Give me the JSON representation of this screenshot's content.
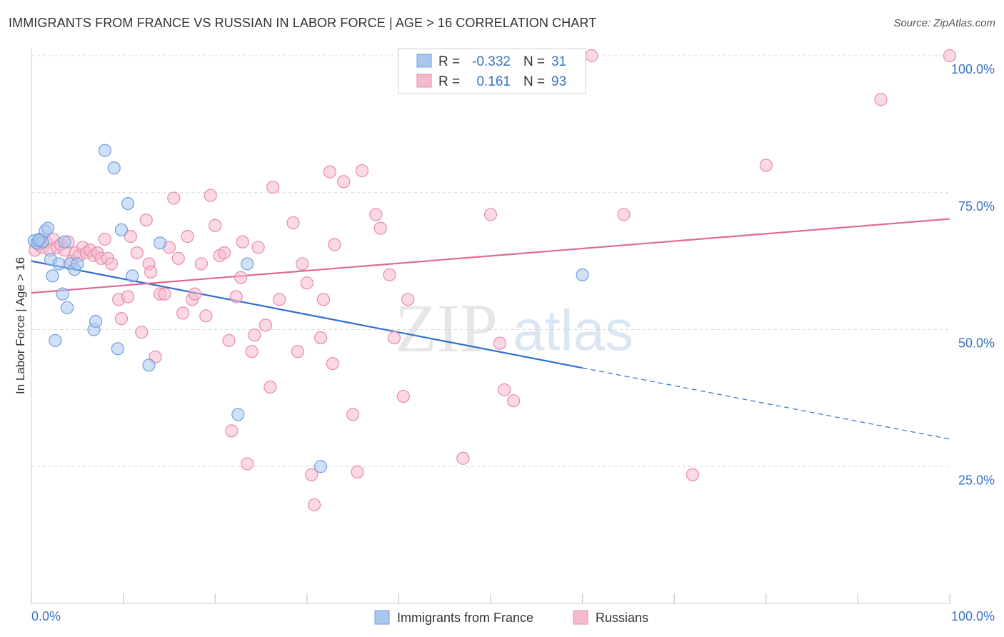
{
  "title": "IMMIGRANTS FROM FRANCE VS RUSSIAN IN LABOR FORCE | AGE > 16 CORRELATION CHART",
  "source": "Source: ZipAtlas.com",
  "watermark": {
    "zip": "ZIP",
    "atlas": "atlas"
  },
  "colors": {
    "france_fill": "#a9c6ee",
    "france_stroke": "#6f9fdd",
    "france_line": "#2f6fd0",
    "russian_fill": "#f5b9cd",
    "russian_stroke": "#e68aab",
    "russian_line": "#e06a94",
    "value_text": "#3a73c4",
    "grid": "#d8d8d8"
  },
  "stats_legend": {
    "rows": [
      {
        "r_label": "R =",
        "r_value": "-0.332",
        "n_label": "N =",
        "n_value": "31",
        "series": "france"
      },
      {
        "r_label": "R =",
        "r_value": "0.161",
        "n_label": "N =",
        "n_value": "93",
        "series": "russian"
      }
    ]
  },
  "bottom_legend": [
    "Immigrants from France",
    "Russians"
  ],
  "chart_data": {
    "type": "scatter",
    "title": "IMMIGRANTS FROM FRANCE VS RUSSIAN IN LABOR FORCE | AGE > 16 CORRELATION CHART",
    "xlabel": "",
    "ylabel": "In Labor Force | Age > 16",
    "xlim": [
      0,
      100
    ],
    "ylim": [
      0,
      100
    ],
    "x_tick_labels": [
      "0.0%",
      "100.0%"
    ],
    "y_tick_labels": [
      {
        "value": 100,
        "label": "100.0%"
      },
      {
        "value": 75,
        "label": "75.0%"
      },
      {
        "value": 50,
        "label": "50.0%"
      },
      {
        "value": 25,
        "label": "25.0%"
      }
    ],
    "grid": true,
    "legend_position": "bottom-center",
    "series": [
      {
        "name": "Immigrants from France",
        "r": -0.332,
        "n": 31,
        "trend": {
          "x0": 0,
          "y0": 62.5,
          "x1": 60,
          "y1": 43.0,
          "dash_x1": 100,
          "dash_y1": 30.0
        },
        "points": [
          [
            0.3,
            66.2
          ],
          [
            0.6,
            65.8
          ],
          [
            0.9,
            66.5
          ],
          [
            1.2,
            66.0
          ],
          [
            1.5,
            68.0
          ],
          [
            1.8,
            68.5
          ],
          [
            2.1,
            62.8
          ],
          [
            2.3,
            59.8
          ],
          [
            2.6,
            48.0
          ],
          [
            3.0,
            62.0
          ],
          [
            3.4,
            56.5
          ],
          [
            3.6,
            66.0
          ],
          [
            3.9,
            54.0
          ],
          [
            4.2,
            62.0
          ],
          [
            4.7,
            61.0
          ],
          [
            5.0,
            62.0
          ],
          [
            6.8,
            50.0
          ],
          [
            7.0,
            51.5
          ],
          [
            8.0,
            82.7
          ],
          [
            9.0,
            79.5
          ],
          [
            9.4,
            46.5
          ],
          [
            9.8,
            68.2
          ],
          [
            10.5,
            73.0
          ],
          [
            11.0,
            59.8
          ],
          [
            12.8,
            43.5
          ],
          [
            14.0,
            65.8
          ],
          [
            22.5,
            34.5
          ],
          [
            23.5,
            62.0
          ],
          [
            31.5,
            25.0
          ],
          [
            60.0,
            60.0
          ],
          [
            0.8,
            66.3
          ]
        ]
      },
      {
        "name": "Russians",
        "r": 0.161,
        "n": 93,
        "trend": {
          "x0": 0,
          "y0": 56.7,
          "x1": 100,
          "y1": 70.2
        },
        "points": [
          [
            0.4,
            64.5
          ],
          [
            0.8,
            65.5
          ],
          [
            1.2,
            65.0
          ],
          [
            1.6,
            66.0
          ],
          [
            2.0,
            64.5
          ],
          [
            2.4,
            66.5
          ],
          [
            2.8,
            65.0
          ],
          [
            3.2,
            65.5
          ],
          [
            3.6,
            64.5
          ],
          [
            4.0,
            66.0
          ],
          [
            4.4,
            62.5
          ],
          [
            4.8,
            64.0
          ],
          [
            5.2,
            63.5
          ],
          [
            5.6,
            65.0
          ],
          [
            6.0,
            64.0
          ],
          [
            6.4,
            64.5
          ],
          [
            6.8,
            63.5
          ],
          [
            7.2,
            64.0
          ],
          [
            7.6,
            63.0
          ],
          [
            8.0,
            66.5
          ],
          [
            8.3,
            63.0
          ],
          [
            8.7,
            62.0
          ],
          [
            9.5,
            55.5
          ],
          [
            9.8,
            52.0
          ],
          [
            10.5,
            56.0
          ],
          [
            10.8,
            67.0
          ],
          [
            11.5,
            64.0
          ],
          [
            12.0,
            49.5
          ],
          [
            12.5,
            70.0
          ],
          [
            12.8,
            62.0
          ],
          [
            13.0,
            60.5
          ],
          [
            13.5,
            45.0
          ],
          [
            14.0,
            56.5
          ],
          [
            14.5,
            56.5
          ],
          [
            15.0,
            65.0
          ],
          [
            15.5,
            74.0
          ],
          [
            16.0,
            63.0
          ],
          [
            16.5,
            53.0
          ],
          [
            17.0,
            67.0
          ],
          [
            17.5,
            55.5
          ],
          [
            17.8,
            56.5
          ],
          [
            18.5,
            62.0
          ],
          [
            19.0,
            52.5
          ],
          [
            19.5,
            74.5
          ],
          [
            20.0,
            69.0
          ],
          [
            20.5,
            63.5
          ],
          [
            21.0,
            64.0
          ],
          [
            21.5,
            48.0
          ],
          [
            21.8,
            31.5
          ],
          [
            22.3,
            56.0
          ],
          [
            22.8,
            59.5
          ],
          [
            23.0,
            66.0
          ],
          [
            23.5,
            25.5
          ],
          [
            24.0,
            46.0
          ],
          [
            24.3,
            49.0
          ],
          [
            24.7,
            65.0
          ],
          [
            25.5,
            50.8
          ],
          [
            26.0,
            39.5
          ],
          [
            26.3,
            76.0
          ],
          [
            27.0,
            55.5
          ],
          [
            28.5,
            69.5
          ],
          [
            29.0,
            46.0
          ],
          [
            29.5,
            62.0
          ],
          [
            30.0,
            58.5
          ],
          [
            30.5,
            23.5
          ],
          [
            30.8,
            18.0
          ],
          [
            31.5,
            48.5
          ],
          [
            31.8,
            55.5
          ],
          [
            32.5,
            78.8
          ],
          [
            32.8,
            43.8
          ],
          [
            33.0,
            65.5
          ],
          [
            34.0,
            77.0
          ],
          [
            35.0,
            34.5
          ],
          [
            35.5,
            24.0
          ],
          [
            36.0,
            79.0
          ],
          [
            37.5,
            71.0
          ],
          [
            38.0,
            68.5
          ],
          [
            39.0,
            60.0
          ],
          [
            39.5,
            48.5
          ],
          [
            40.5,
            37.8
          ],
          [
            41.0,
            55.5
          ],
          [
            47.0,
            26.5
          ],
          [
            50.0,
            71.0
          ],
          [
            51.0,
            47.5
          ],
          [
            51.5,
            39.0
          ],
          [
            52.5,
            37.0
          ],
          [
            61.0,
            100.0
          ],
          [
            64.5,
            71.0
          ],
          [
            72.0,
            23.5
          ],
          [
            80.0,
            80.0
          ],
          [
            92.5,
            92.0
          ],
          [
            100.0,
            100.0
          ],
          [
            58.5,
            100.0
          ]
        ]
      }
    ]
  }
}
